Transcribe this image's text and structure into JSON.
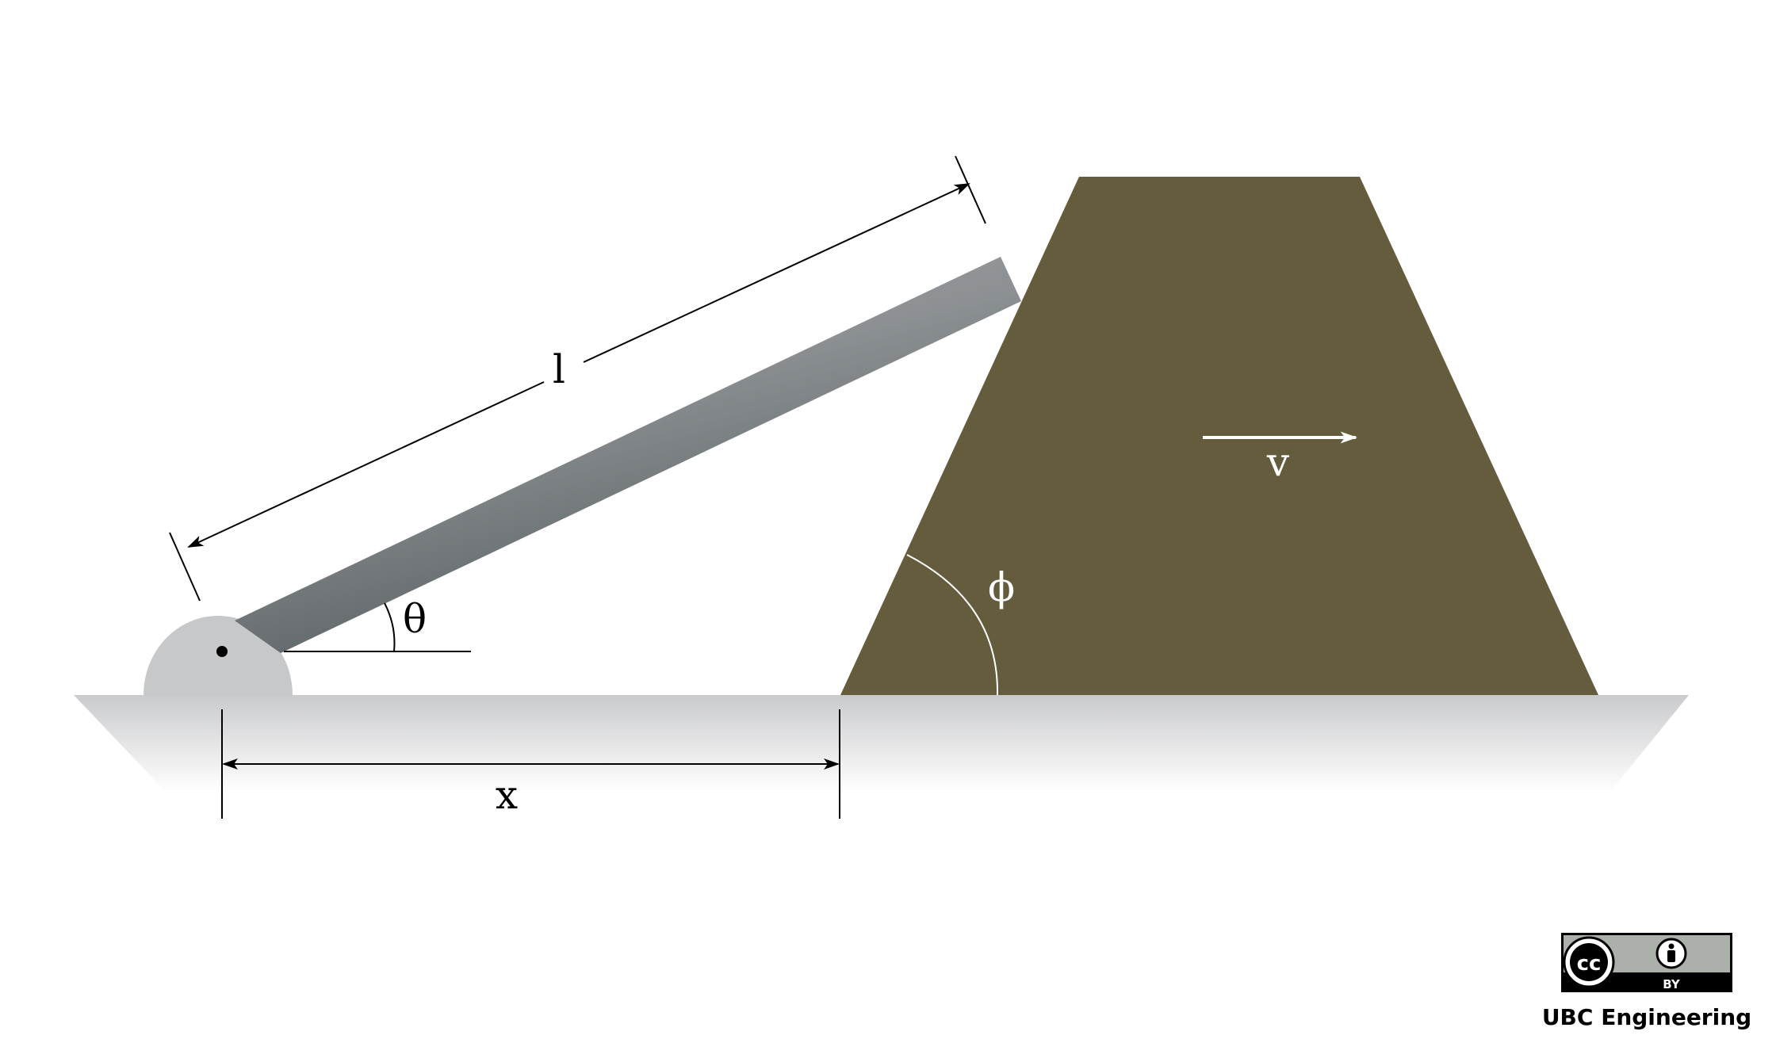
{
  "labels": {
    "length": "l",
    "angle_theta": "θ",
    "angle_phi": "ϕ",
    "velocity": "v",
    "distance": "x"
  },
  "footer": {
    "organization": "UBC Engineering",
    "license_cc": "cc",
    "license_by": "BY"
  },
  "colors": {
    "block": "#645c3c",
    "rod": "#8d9194",
    "pivot": "#c6c8ca",
    "ground_top": "#c9cacc",
    "line": "#000000",
    "annotation_on_block": "#ffffff"
  }
}
